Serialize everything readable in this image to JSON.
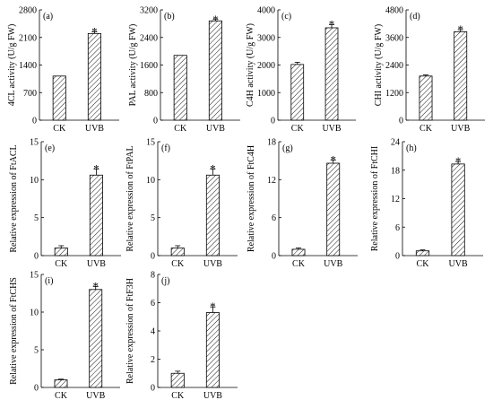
{
  "figure_domain": "Chart",
  "colors": {
    "bar_hatch": "#000000",
    "axis": "#000000",
    "background": "#ffffff"
  },
  "chart_data": [
    {
      "type": "bar",
      "panel": "(a)",
      "ylabel": "4CL activity (U/g FW)",
      "categories": [
        "CK",
        "UVB"
      ],
      "values": [
        1120,
        2200
      ],
      "errors": [
        0,
        40
      ],
      "ylim": [
        0,
        2800
      ],
      "yticks": [
        0,
        700,
        1400,
        2100,
        2800
      ],
      "significance": [
        "",
        "*"
      ]
    },
    {
      "type": "bar",
      "panel": "(b)",
      "ylabel": "PAL activity (U/g FW)",
      "categories": [
        "CK",
        "UVB"
      ],
      "values": [
        1880,
        2880
      ],
      "errors": [
        0,
        40
      ],
      "ylim": [
        0,
        3200
      ],
      "yticks": [
        0,
        800,
        1600,
        2400,
        3200
      ],
      "significance": [
        "",
        "*"
      ]
    },
    {
      "type": "bar",
      "panel": "(c)",
      "ylabel": "C4H activity (U/g FW)",
      "categories": [
        "CK",
        "UVB"
      ],
      "values": [
        2020,
        3350
      ],
      "errors": [
        80,
        110
      ],
      "ylim": [
        0,
        4000
      ],
      "yticks": [
        0,
        1000,
        2000,
        3000,
        4000
      ],
      "significance": [
        "",
        "*"
      ]
    },
    {
      "type": "bar",
      "panel": "(d)",
      "ylabel": "CHI activity (U/g FW)",
      "categories": [
        "CK",
        "UVB"
      ],
      "values": [
        1920,
        3850
      ],
      "errors": [
        50,
        90
      ],
      "ylim": [
        0,
        4800
      ],
      "yticks": [
        0,
        1200,
        2400,
        3600,
        4800
      ],
      "significance": [
        "",
        "*"
      ]
    },
    {
      "type": "bar",
      "panel": "(e)",
      "ylabel": "Relative expression of FtACL",
      "categories": [
        "CK",
        "UVB"
      ],
      "values": [
        1.0,
        10.6
      ],
      "errors": [
        0.3,
        0.8
      ],
      "ylim": [
        0,
        15
      ],
      "yticks": [
        0,
        5,
        10,
        15
      ],
      "significance": [
        "",
        "*"
      ]
    },
    {
      "type": "bar",
      "panel": "(f)",
      "ylabel": "Relative expression of FtPAL",
      "categories": [
        "CK",
        "UVB"
      ],
      "values": [
        1.0,
        10.6
      ],
      "errors": [
        0.3,
        0.8
      ],
      "ylim": [
        0,
        15
      ],
      "yticks": [
        0,
        5,
        10,
        15
      ],
      "significance": [
        "",
        "*"
      ]
    },
    {
      "type": "bar",
      "panel": "(g)",
      "ylabel": "Relative expression of FtC4H",
      "categories": [
        "CK",
        "UVB"
      ],
      "values": [
        1.0,
        14.6
      ],
      "errors": [
        0.2,
        0.5
      ],
      "ylim": [
        0,
        18
      ],
      "yticks": [
        0,
        6,
        12,
        18
      ],
      "significance": [
        "",
        "*"
      ]
    },
    {
      "type": "bar",
      "panel": "(h)",
      "ylabel": "Relative expression of FtCHI",
      "categories": [
        "CK",
        "UVB"
      ],
      "values": [
        1.0,
        19.3
      ],
      "errors": [
        0.2,
        0.5
      ],
      "ylim": [
        0,
        24
      ],
      "yticks": [
        0,
        6,
        12,
        18,
        24
      ],
      "significance": [
        "",
        "*"
      ]
    },
    {
      "type": "bar",
      "panel": "(i)",
      "ylabel": "Relative expression of FtCHS",
      "categories": [
        "CK",
        "UVB"
      ],
      "values": [
        1.0,
        13.0
      ],
      "errors": [
        0.1,
        0.4
      ],
      "ylim": [
        0,
        15
      ],
      "yticks": [
        0,
        5,
        10,
        15
      ],
      "significance": [
        "",
        "*"
      ]
    },
    {
      "type": "bar",
      "panel": "(j)",
      "ylabel": "Relative expression of FtF3H",
      "categories": [
        "CK",
        "UVB"
      ],
      "values": [
        1.0,
        5.3
      ],
      "errors": [
        0.15,
        0.4
      ],
      "ylim": [
        0,
        8
      ],
      "yticks": [
        0,
        2,
        4,
        6,
        8
      ],
      "significance": [
        "",
        "*"
      ]
    }
  ]
}
